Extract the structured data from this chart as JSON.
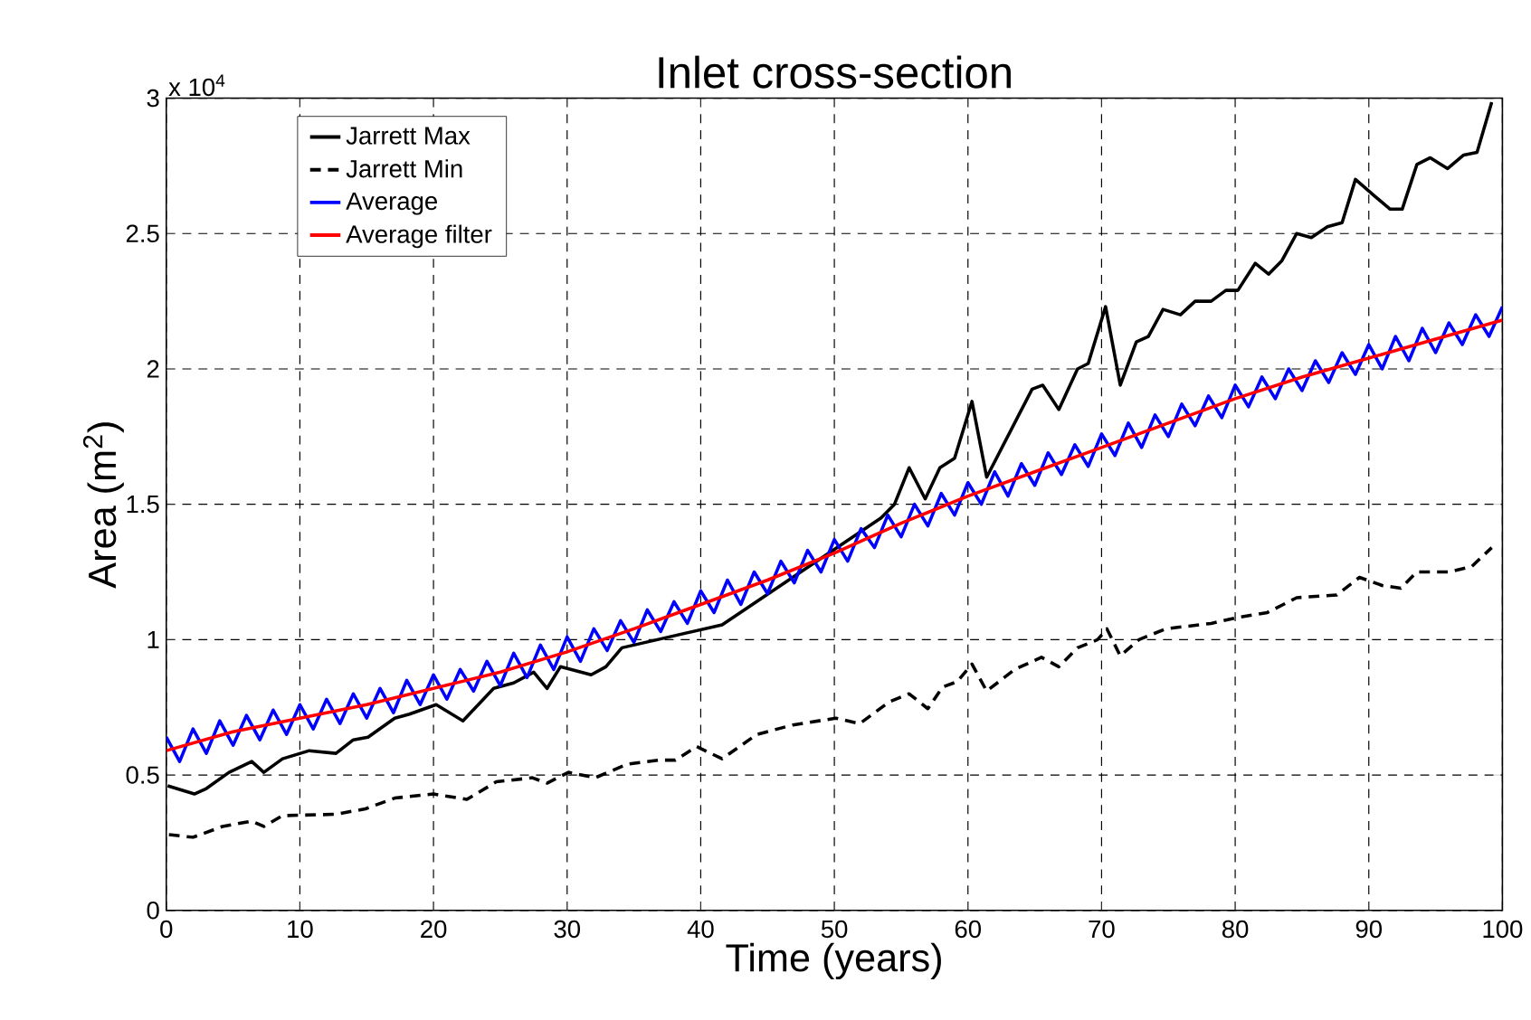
{
  "chart_data": {
    "type": "line",
    "title": "Inlet cross-section",
    "xlabel": "Time (years)",
    "ylabel": "Area (m$^{2}$)",
    "annotations": [
      "x 10$^{4}$"
    ],
    "xlim": [
      0,
      100
    ],
    "ylim": [
      0,
      3
    ],
    "xticks": [
      0,
      10,
      20,
      30,
      40,
      50,
      60,
      70,
      80,
      90,
      100
    ],
    "yticks": [
      0,
      0.5,
      1,
      1.5,
      2,
      2.5,
      3
    ],
    "grid": true,
    "legend": "top left",
    "series": [
      {
        "name": "Jarrett Max",
        "color": "#000000",
        "line_style": "solid",
        "x": [
          0.1,
          2.1,
          3,
          4.7,
          6.4,
          7.3,
          8.7,
          10.7,
          12.7,
          14,
          15.1,
          17.1,
          18.2,
          20.2,
          22.2,
          24.5,
          26,
          27.5,
          28.5,
          29.5,
          31.8,
          32.9,
          34.1,
          38,
          41.6,
          45,
          48,
          51,
          53.5,
          54.5,
          55.6,
          56.8,
          57.9,
          59,
          60.3,
          61.4,
          64.8,
          65.6,
          66.8,
          68.2,
          69,
          70.3,
          71.4,
          72.6,
          73.5,
          74.6,
          75.9,
          77,
          78.2,
          79.3,
          80.2,
          81.5,
          82.5,
          83.5,
          84.6,
          85.7,
          86.9,
          88,
          89,
          90.4,
          91.6,
          92.5,
          93.6,
          94.6,
          95.9,
          97.1,
          98.1,
          99.2
        ],
        "values": [
          0.46,
          0.43,
          0.45,
          0.51,
          0.55,
          0.51,
          0.56,
          0.59,
          0.58,
          0.63,
          0.64,
          0.71,
          0.725,
          0.76,
          0.7,
          0.82,
          0.84,
          0.88,
          0.82,
          0.9,
          0.87,
          0.9,
          0.97,
          null,
          1.055,
          null,
          null,
          null,
          1.45,
          1.5,
          1.635,
          1.52,
          1.635,
          1.67,
          1.88,
          1.6,
          1.925,
          1.94,
          1.85,
          2.0,
          2.02,
          2.23,
          1.94,
          2.1,
          2.12,
          2.22,
          2.2,
          2.25,
          2.25,
          2.29,
          2.29,
          2.39,
          2.35,
          2.4,
          2.5,
          2.485,
          2.525,
          2.54,
          2.7,
          2.64,
          2.59,
          2.59,
          2.755,
          2.78,
          2.74,
          2.79,
          2.8,
          2.985
        ]
      },
      {
        "name": "Jarrett Min",
        "color": "#000000",
        "line_style": "dashed",
        "x": [
          0.2,
          2,
          4.2,
          6.4,
          7.3,
          8.7,
          12.7,
          14.9,
          17.1,
          20,
          22.5,
          24.7,
          27.4,
          28.5,
          30.1,
          32.1,
          34.5,
          36.8,
          38.1,
          39.7,
          41.6,
          44.2,
          46.9,
          50.1,
          51.9,
          54.1,
          55.6,
          57,
          58.1,
          59.2,
          60.3,
          61.4,
          63.5,
          65.5,
          66.8,
          68.2,
          69.7,
          70.4,
          71.4,
          72.8,
          74.8,
          78.2,
          80,
          82.4,
          84.6,
          87.6,
          89.3,
          91,
          92.4,
          93.6,
          96,
          97.7,
          99.2
        ],
        "values": [
          0.28,
          0.27,
          0.31,
          0.33,
          0.31,
          0.35,
          0.355,
          0.375,
          0.415,
          0.43,
          0.41,
          0.475,
          0.49,
          0.47,
          0.51,
          0.49,
          0.54,
          0.555,
          0.555,
          0.605,
          0.56,
          0.65,
          0.685,
          0.71,
          0.69,
          0.77,
          0.8,
          0.745,
          0.825,
          0.845,
          0.91,
          0.81,
          0.89,
          0.935,
          0.9,
          0.97,
          1.0,
          1.04,
          0.94,
          1.0,
          1.04,
          1.06,
          1.08,
          1.1,
          1.155,
          1.165,
          1.23,
          1.2,
          1.19,
          1.25,
          1.25,
          1.27,
          1.34
        ]
      },
      {
        "name": "Average",
        "color": "#0000ff",
        "line_style": "solid",
        "x": [
          0,
          1,
          2,
          3,
          4,
          5,
          6,
          7,
          8,
          9,
          10,
          11,
          12,
          13,
          14,
          15,
          16,
          17,
          18,
          19,
          20,
          21,
          22,
          23,
          24,
          25,
          26,
          27,
          28,
          29,
          30,
          31,
          32,
          33,
          34,
          35,
          36,
          37,
          38,
          39,
          40,
          41,
          42,
          43,
          44,
          45,
          46,
          47,
          48,
          49,
          50,
          51,
          52,
          53,
          54,
          55,
          56,
          57,
          58,
          59,
          60,
          61,
          62,
          63,
          64,
          65,
          66,
          67,
          68,
          69,
          70,
          71,
          72,
          73,
          74,
          75,
          76,
          77,
          78,
          79,
          80,
          81,
          82,
          83,
          84,
          85,
          86,
          87,
          88,
          89,
          90,
          91,
          92,
          93,
          94,
          95,
          96,
          97,
          98,
          99,
          100
        ],
        "values": [
          0.64,
          0.55,
          0.67,
          0.58,
          0.7,
          0.61,
          0.72,
          0.63,
          0.74,
          0.65,
          0.76,
          0.67,
          0.78,
          0.69,
          0.8,
          0.71,
          0.82,
          0.73,
          0.85,
          0.76,
          0.87,
          0.78,
          0.89,
          0.81,
          0.92,
          0.83,
          0.95,
          0.86,
          0.98,
          0.89,
          1.01,
          0.92,
          1.04,
          0.96,
          1.07,
          0.99,
          1.11,
          1.03,
          1.14,
          1.06,
          1.18,
          1.1,
          1.22,
          1.13,
          1.25,
          1.17,
          1.29,
          1.21,
          1.33,
          1.25,
          1.37,
          1.29,
          1.41,
          1.34,
          1.46,
          1.38,
          1.5,
          1.42,
          1.54,
          1.46,
          1.58,
          1.5,
          1.62,
          1.53,
          1.65,
          1.57,
          1.69,
          1.61,
          1.72,
          1.64,
          1.76,
          1.68,
          1.8,
          1.71,
          1.83,
          1.75,
          1.87,
          1.79,
          1.9,
          1.82,
          1.94,
          1.86,
          1.97,
          1.89,
          2.0,
          1.92,
          2.03,
          1.95,
          2.06,
          1.98,
          2.09,
          2.0,
          2.12,
          2.03,
          2.15,
          2.06,
          2.17,
          2.09,
          2.2,
          2.12,
          2.23
        ]
      },
      {
        "name": "Average filter",
        "color": "#ff0000",
        "line_style": "solid",
        "x": [
          0,
          5,
          10,
          15,
          20,
          25,
          30,
          35,
          40,
          45,
          50,
          55,
          60,
          65,
          70,
          75,
          80,
          85,
          90,
          95,
          100
        ],
        "values": [
          0.59,
          0.66,
          0.71,
          0.76,
          0.82,
          0.88,
          0.955,
          1.04,
          1.13,
          1.22,
          1.32,
          1.43,
          1.53,
          1.62,
          1.71,
          1.8,
          1.89,
          1.97,
          2.04,
          2.11,
          2.18
        ]
      }
    ]
  }
}
